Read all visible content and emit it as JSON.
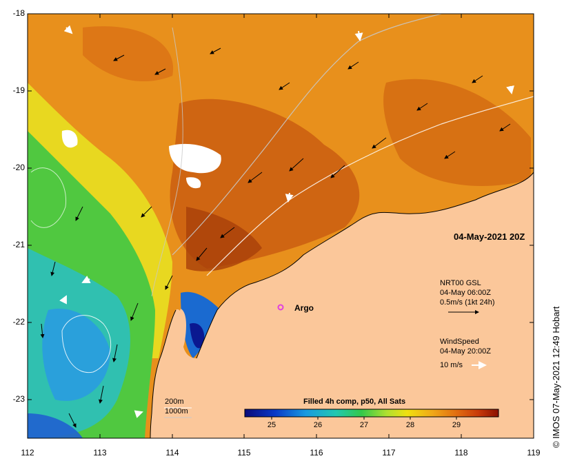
{
  "map": {
    "y_axis_labels": [
      "-18",
      "-19",
      "-20",
      "-21",
      "-22",
      "-23"
    ],
    "x_axis_labels": [
      "112",
      "113",
      "114",
      "115",
      "116",
      "117",
      "118",
      "119"
    ],
    "date_stamp": "04-May-2021 20Z",
    "credit": "© IMOS 07-May-2021 12:49 Hobart",
    "argo_label": "Argo",
    "current_legend": {
      "line1": "NRT00 GSL",
      "line2": "04-May 06:00Z",
      "line3": "0.5m/s (1kt 24h)"
    },
    "wind_legend": {
      "line1": "WindSpeed",
      "line2": "04-May 20:00Z",
      "line3": "10 m/s"
    },
    "depth_legend": {
      "shallow": "200m",
      "deep": "1000m"
    },
    "colorbar": {
      "title": "Filled 4h comp, p50, All Sats",
      "tick_labels": [
        "25",
        "26",
        "27",
        "28",
        "29"
      ],
      "ticks": [
        25,
        26,
        27,
        28,
        29
      ],
      "range": [
        24.5,
        29.9
      ]
    },
    "colors": {
      "land": "#fbc79a",
      "argo_marker": "#e040e0",
      "current_arrow": "#000000",
      "wind_arrow": "#ffffff"
    }
  }
}
